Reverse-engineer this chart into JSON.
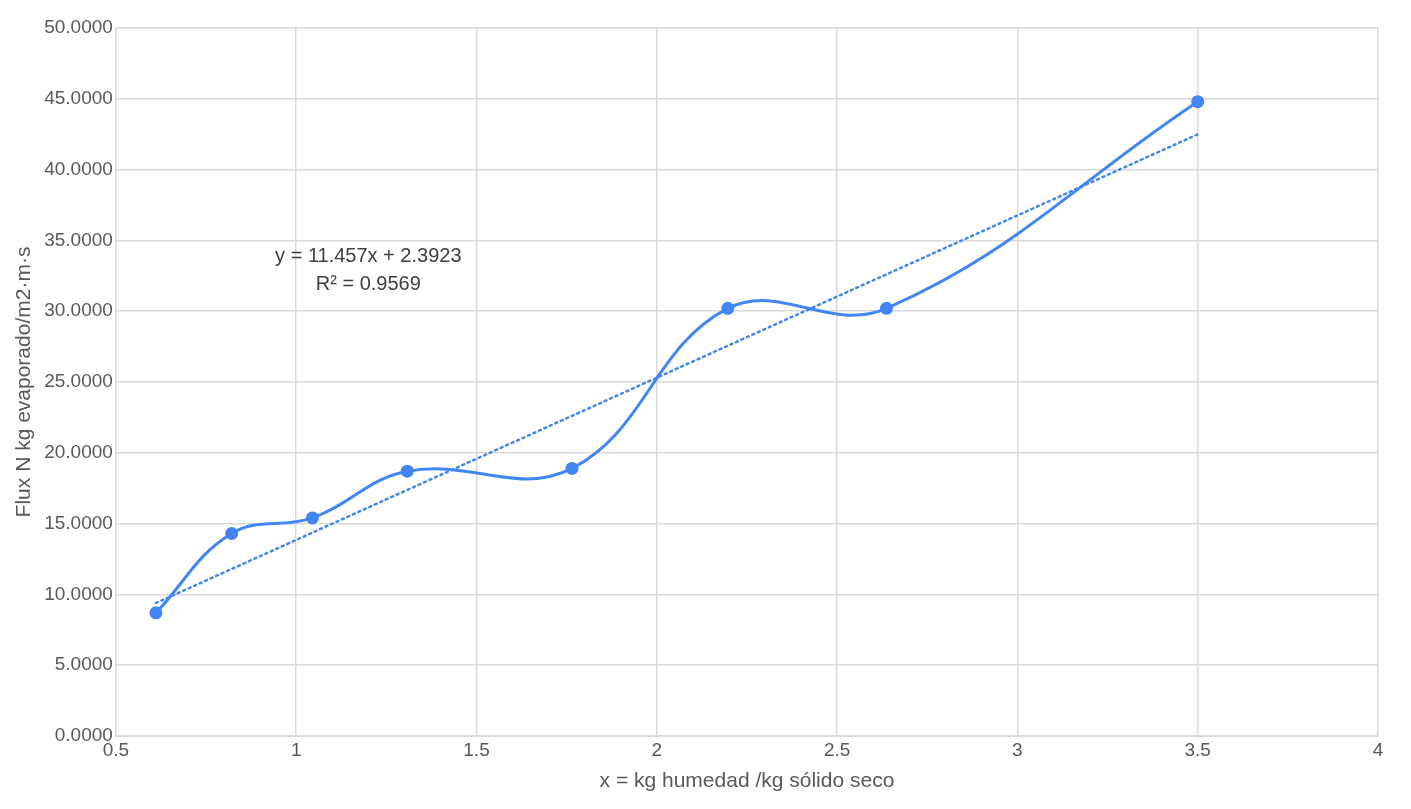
{
  "chart_data": {
    "type": "line",
    "xlabel": "x = kg humedad /kg sólido seco",
    "ylabel": "Flux N kg evaporado/m2·m·s",
    "xlim": [
      0.5,
      4
    ],
    "xticks": [
      0.5,
      1,
      1.5,
      2,
      2.5,
      3,
      3.5,
      4
    ],
    "ylim": [
      0,
      50
    ],
    "yticks": [
      {
        "value": 0,
        "label": "0.0000"
      },
      {
        "value": 5,
        "label": "5.0000"
      },
      {
        "value": 10,
        "label": "10.0000"
      },
      {
        "value": 15,
        "label": "15.0000"
      },
      {
        "value": 20,
        "label": "20.0000"
      },
      {
        "value": 25,
        "label": "25.0000"
      },
      {
        "value": 30,
        "label": "30.0000"
      },
      {
        "value": 35,
        "label": "35.0000"
      },
      {
        "value": 40,
        "label": "40.0000"
      },
      {
        "value": 45,
        "label": "45.0000"
      },
      {
        "value": 50,
        "label": "50.0000"
      }
    ],
    "grid": true,
    "legend": false,
    "series": [
      {
        "color": "#4285f4",
        "marker": "circle",
        "line_style": "solid",
        "x": [
          0.611,
          0.821,
          1.045,
          1.308,
          1.765,
          2.197,
          2.637,
          3.5
        ],
        "values": [
          8.7,
          14.3,
          15.4,
          18.7,
          18.9,
          30.2,
          30.2,
          44.8
        ]
      },
      {
        "type": "line",
        "color": "#4285f4",
        "marker": "none",
        "line_style": "dotted",
        "x": [
          0.611,
          3.5
        ],
        "values": [
          9.39,
          42.49
        ]
      }
    ],
    "annotations": [
      "y = 11.457x + 2.3923\nR² = 0.9569"
    ]
  }
}
